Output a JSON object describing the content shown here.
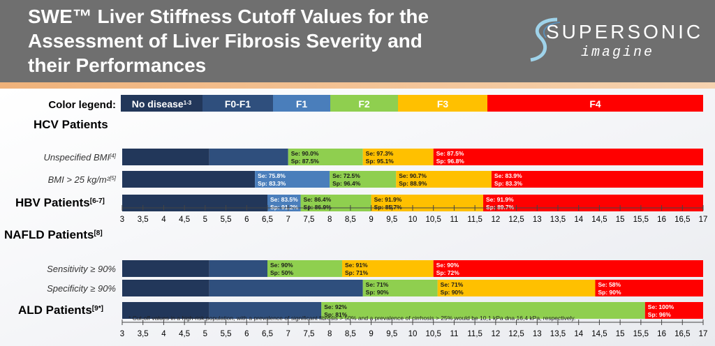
{
  "header": {
    "title": "SWE™ Liver Stiffness Cutoff Values for the\nAssessment of Liver Fibrosis Severity and\ntheir Performances",
    "logo_text": "SUPERSONIC",
    "logo_subtext": "imagine"
  },
  "colors": {
    "none": "#22375a",
    "f0f1": "#2f4f7d",
    "f1": "#4a7ebb",
    "f2": "#8fcf4f",
    "f3": "#ffc000",
    "f4": "#ff0000"
  },
  "chart_data": {
    "type": "bar",
    "orientation": "horizontal-stacked-ranges",
    "x_unit": "kPa",
    "xlim": [
      3,
      17
    ],
    "x_ticks": [
      "3",
      "3,5",
      "4",
      "4,5",
      "5",
      "5,5",
      "6",
      "6,5",
      "7",
      "7,5",
      "8",
      "8,5",
      "9",
      "9,5",
      "10",
      "10,5",
      "11",
      "11,5",
      "12",
      "12,5",
      "13",
      "13,5",
      "14",
      "14,5",
      "15",
      "15,5",
      "16",
      "16,5",
      "17"
    ],
    "legend": {
      "label": "Color legend:",
      "items": [
        {
          "key": "none",
          "label": "No disease",
          "sup": "1-3"
        },
        {
          "key": "f0f1",
          "label": "F0-F1",
          "sup": ""
        },
        {
          "key": "f1",
          "label": "F1",
          "sup": ""
        },
        {
          "key": "f2",
          "label": "F2",
          "sup": ""
        },
        {
          "key": "f3",
          "label": "F3",
          "sup": ""
        },
        {
          "key": "f4",
          "label": "F4",
          "sup": ""
        }
      ]
    },
    "groups": [
      {
        "label": "HCV Patients",
        "sup": "",
        "rows": [
          {
            "label": "Unspecified BMI",
            "sup": "[4]",
            "italic": true,
            "segments": [
              {
                "key": "none",
                "from": 3,
                "to": 5.1
              },
              {
                "key": "f0f1",
                "from": 5.1,
                "to": 7
              },
              {
                "key": "f2",
                "from": 7,
                "to": 8.8,
                "se": "Se: 90.0%",
                "sp": "Sp: 87.5%"
              },
              {
                "key": "f3",
                "from": 8.8,
                "to": 10.5,
                "se": "Se: 97.3%",
                "sp": "Sp: 95.1%"
              },
              {
                "key": "f4",
                "from": 10.5,
                "to": 17,
                "se": "Se: 87.5%",
                "sp": "Sp: 96.8%"
              }
            ]
          },
          {
            "label": "BMI > 25 kg/m²",
            "sup": "[5]",
            "italic": true,
            "segments": [
              {
                "key": "none",
                "from": 3,
                "to": 6.2
              },
              {
                "key": "f1",
                "from": 6.2,
                "to": 8,
                "se": "Se: 75.8%",
                "sp": "Sp: 83.3%"
              },
              {
                "key": "f2",
                "from": 8,
                "to": 9.6,
                "se": "Se: 72.5%",
                "sp": "Sp: 96.4%"
              },
              {
                "key": "f3",
                "from": 9.6,
                "to": 11.9,
                "se": "Se: 90.7%",
                "sp": "Sp: 88.9%"
              },
              {
                "key": "f4",
                "from": 11.9,
                "to": 17,
                "se": "Se: 83.9%",
                "sp": "Sp: 83.3%"
              }
            ]
          }
        ]
      },
      {
        "label": "HBV Patients",
        "sup": "[6-7]",
        "rows": [
          {
            "label": "",
            "sup": "",
            "italic": false,
            "segments": [
              {
                "key": "none",
                "from": 3,
                "to": 6.5
              },
              {
                "key": "f1",
                "from": 6.5,
                "to": 7.3,
                "se": "Se: 83.5%",
                "sp": "Sp: 91.2%"
              },
              {
                "key": "f2",
                "from": 7.3,
                "to": 9,
                "se": "Se: 86.4%",
                "sp": "Sp: 86.9%"
              },
              {
                "key": "f3",
                "from": 9,
                "to": 11.7,
                "se": "Se: 91.9%",
                "sp": "Sp: 85.7%"
              },
              {
                "key": "f4",
                "from": 11.7,
                "to": 17,
                "se": "Se: 91.9%",
                "sp": "Sp: 89.7%"
              }
            ]
          }
        ]
      },
      {
        "label": "NAFLD Patients",
        "sup": "[8]",
        "rows": [
          {
            "label": "Sensitivity ≥ 90%",
            "sup": "",
            "italic": true,
            "segments": [
              {
                "key": "none",
                "from": 3,
                "to": 5.1
              },
              {
                "key": "f0f1",
                "from": 5.1,
                "to": 6.5
              },
              {
                "key": "f2",
                "from": 6.5,
                "to": 8.3,
                "se": "Se: 90%",
                "sp": "Sp: 50%"
              },
              {
                "key": "f3",
                "from": 8.3,
                "to": 10.5,
                "se": "Se: 91%",
                "sp": "Sp: 71%"
              },
              {
                "key": "f4",
                "from": 10.5,
                "to": 17,
                "se": "Se: 90%",
                "sp": "Sp: 72%"
              }
            ]
          },
          {
            "label": "Specificity ≥ 90%",
            "sup": "",
            "italic": true,
            "segments": [
              {
                "key": "none",
                "from": 3,
                "to": 5.1
              },
              {
                "key": "f0f1",
                "from": 5.1,
                "to": 8.8
              },
              {
                "key": "f2",
                "from": 8.8,
                "to": 10.6,
                "se": "Se: 71%",
                "sp": "Sp: 90%"
              },
              {
                "key": "f3",
                "from": 10.6,
                "to": 14.4,
                "se": "Se: 71%",
                "sp": "Sp: 90%"
              },
              {
                "key": "f4",
                "from": 14.4,
                "to": 17,
                "se": "Se: 58%",
                "sp": "Sp: 90%"
              }
            ]
          }
        ]
      },
      {
        "label": "ALD Patients",
        "sup": "[9*]",
        "rows": [
          {
            "label": "",
            "sup": "",
            "italic": false,
            "segments": [
              {
                "key": "none",
                "from": 3,
                "to": 5.1
              },
              {
                "key": "f0f1",
                "from": 5.1,
                "to": 7.8
              },
              {
                "key": "f2",
                "from": 7.8,
                "to": 15.6,
                "se": "Se: 92%",
                "sp": "Sp: 81%"
              },
              {
                "key": "f4",
                "from": 15.6,
                "to": 17,
                "se": "Se: 100%",
                "sp": "Sp: 96%"
              }
            ]
          }
        ]
      }
    ],
    "footnote": "* Cut-off values in a high-risk population, with a prevalence of significant fibrosis > 50% and a prevalence of cirrhosis > 25% would be 10,1 kPa dna 16,4 kPa, respectively."
  }
}
